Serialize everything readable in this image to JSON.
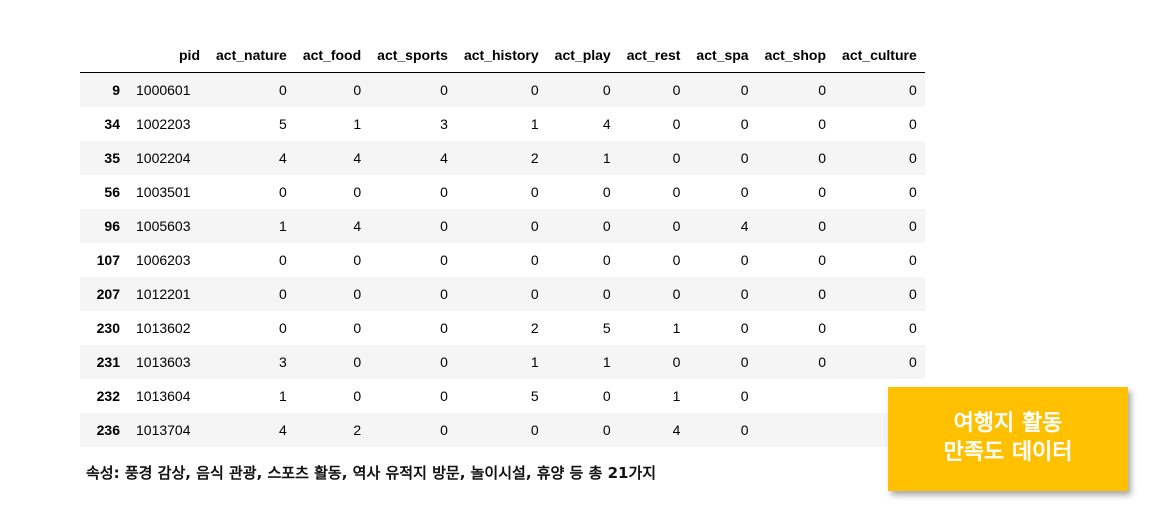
{
  "table": {
    "columns": [
      "",
      "pid",
      "act_nature",
      "act_food",
      "act_sports",
      "act_history",
      "act_play",
      "act_rest",
      "act_spa",
      "act_shop",
      "act_culture"
    ],
    "rows": [
      {
        "index": "9",
        "pid": "1000601",
        "values": [
          "0",
          "0",
          "0",
          "0",
          "0",
          "0",
          "0",
          "0",
          "0"
        ]
      },
      {
        "index": "34",
        "pid": "1002203",
        "values": [
          "5",
          "1",
          "3",
          "1",
          "4",
          "0",
          "0",
          "0",
          "0"
        ]
      },
      {
        "index": "35",
        "pid": "1002204",
        "values": [
          "4",
          "4",
          "4",
          "2",
          "1",
          "0",
          "0",
          "0",
          "0"
        ]
      },
      {
        "index": "56",
        "pid": "1003501",
        "values": [
          "0",
          "0",
          "0",
          "0",
          "0",
          "0",
          "0",
          "0",
          "0"
        ]
      },
      {
        "index": "96",
        "pid": "1005603",
        "values": [
          "1",
          "4",
          "0",
          "0",
          "0",
          "0",
          "4",
          "0",
          "0"
        ]
      },
      {
        "index": "107",
        "pid": "1006203",
        "values": [
          "0",
          "0",
          "0",
          "0",
          "0",
          "0",
          "0",
          "0",
          "0"
        ]
      },
      {
        "index": "207",
        "pid": "1012201",
        "values": [
          "0",
          "0",
          "0",
          "0",
          "0",
          "0",
          "0",
          "0",
          "0"
        ]
      },
      {
        "index": "230",
        "pid": "1013602",
        "values": [
          "0",
          "0",
          "0",
          "2",
          "5",
          "1",
          "0",
          "0",
          "0"
        ]
      },
      {
        "index": "231",
        "pid": "1013603",
        "values": [
          "3",
          "0",
          "0",
          "1",
          "1",
          "0",
          "0",
          "0",
          "0"
        ]
      },
      {
        "index": "232",
        "pid": "1013604",
        "values": [
          "1",
          "0",
          "0",
          "5",
          "0",
          "1",
          "0",
          "",
          ""
        ]
      },
      {
        "index": "236",
        "pid": "1013704",
        "values": [
          "4",
          "2",
          "0",
          "0",
          "0",
          "4",
          "0",
          "",
          ""
        ]
      }
    ]
  },
  "caption": "속성: 풍경 감상, 음식 관광, 스포츠 활동, 역사 유적지 방문, 놀이시설, 휴양 등 총 21가지",
  "badge": {
    "line1": "여행지 활동",
    "line2": "만족도 데이터",
    "color": "#ffc000"
  }
}
